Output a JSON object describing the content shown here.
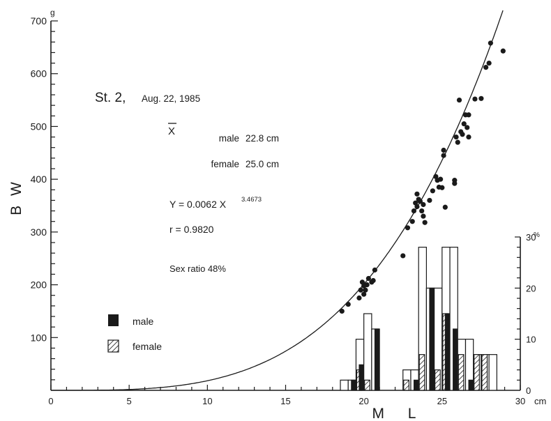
{
  "chart_data": {
    "type": "scatter",
    "title": "St. 2,",
    "date": "Aug. 22, 1985",
    "xlabel": "M L",
    "ylabel": "B W",
    "x_unit": "cm",
    "y_unit": "g",
    "pct_unit": "%",
    "xlim": [
      0,
      30
    ],
    "ylim": [
      0,
      700
    ],
    "pct_lim": [
      0,
      30
    ],
    "x_ticks": [
      "0",
      "5",
      "10",
      "15",
      "20",
      "25",
      "30"
    ],
    "y_ticks": [
      "100",
      "200",
      "300",
      "400",
      "500",
      "600",
      "700"
    ],
    "pct_ticks": [
      "0",
      "10",
      "20",
      "30"
    ],
    "annotations": {
      "xbar": "X",
      "male_label": "male",
      "male_mean": "22.8 cm",
      "female_label": "female",
      "female_mean": "25.0 cm",
      "eq_prefix": "Y = 0.0062 X",
      "eq_exp": "3.4673",
      "r": "r = 0.9820",
      "sex_ratio": "Sex ratio 48%"
    },
    "legend": [
      {
        "name": "male",
        "fill": "solid"
      },
      {
        "name": "female",
        "fill": "hatched"
      }
    ],
    "curve": {
      "a": 0.0062,
      "b": 3.4673
    },
    "scatter": [
      [
        18.6,
        150
      ],
      [
        19.0,
        163
      ],
      [
        19.7,
        175
      ],
      [
        19.8,
        190
      ],
      [
        19.9,
        205
      ],
      [
        20.0,
        182
      ],
      [
        20.0,
        198
      ],
      [
        20.1,
        190
      ],
      [
        20.2,
        200
      ],
      [
        20.3,
        212
      ],
      [
        20.5,
        205
      ],
      [
        20.6,
        208
      ],
      [
        20.7,
        228
      ],
      [
        22.5,
        255
      ],
      [
        22.8,
        308
      ],
      [
        23.1,
        320
      ],
      [
        23.2,
        340
      ],
      [
        23.3,
        355
      ],
      [
        23.4,
        372
      ],
      [
        23.4,
        348
      ],
      [
        23.5,
        362
      ],
      [
        23.6,
        358
      ],
      [
        23.7,
        340
      ],
      [
        23.8,
        352
      ],
      [
        23.8,
        330
      ],
      [
        23.9,
        318
      ],
      [
        24.2,
        360
      ],
      [
        24.4,
        378
      ],
      [
        24.6,
        405
      ],
      [
        24.7,
        398
      ],
      [
        24.8,
        385
      ],
      [
        24.9,
        400
      ],
      [
        25.0,
        384
      ],
      [
        25.1,
        445
      ],
      [
        25.1,
        455
      ],
      [
        25.2,
        347
      ],
      [
        25.8,
        398
      ],
      [
        25.8,
        392
      ],
      [
        25.9,
        480
      ],
      [
        26.0,
        470
      ],
      [
        26.1,
        550
      ],
      [
        26.2,
        490
      ],
      [
        26.3,
        485
      ],
      [
        26.4,
        505
      ],
      [
        26.5,
        522
      ],
      [
        26.6,
        498
      ],
      [
        26.7,
        480
      ],
      [
        26.7,
        522
      ],
      [
        27.1,
        552
      ],
      [
        27.5,
        553
      ],
      [
        27.8,
        612
      ],
      [
        28.0,
        620
      ],
      [
        28.1,
        658
      ],
      [
        28.9,
        643
      ]
    ],
    "histogram": {
      "bin_width": 0.5,
      "bins": [
        {
          "x": 18.5,
          "male": 0,
          "female": 0,
          "total": 2
        },
        {
          "x": 19.0,
          "male": 2,
          "female": 0,
          "total": 2
        },
        {
          "x": 19.5,
          "male": 5,
          "female": 4,
          "total": 10
        },
        {
          "x": 20.0,
          "male": 0,
          "female": 2,
          "total": 15
        },
        {
          "x": 20.5,
          "male": 12,
          "female": 0,
          "total": 12
        },
        {
          "x": 22.5,
          "male": 0,
          "female": 2,
          "total": 4
        },
        {
          "x": 23.0,
          "male": 2,
          "female": 0,
          "total": 4
        },
        {
          "x": 23.5,
          "male": 0,
          "female": 7,
          "total": 28
        },
        {
          "x": 24.0,
          "male": 20,
          "female": 0,
          "total": 20
        },
        {
          "x": 24.5,
          "male": 0,
          "female": 4,
          "total": 20
        },
        {
          "x": 25.0,
          "male": 15,
          "female": 15,
          "total": 28
        },
        {
          "x": 25.5,
          "male": 12,
          "female": 0,
          "total": 28
        },
        {
          "x": 26.0,
          "male": 0,
          "female": 7,
          "total": 10
        },
        {
          "x": 26.5,
          "male": 2,
          "female": 0,
          "total": 10
        },
        {
          "x": 27.0,
          "male": 0,
          "female": 7,
          "total": 7
        },
        {
          "x": 27.5,
          "male": 0,
          "female": 7,
          "total": 7
        },
        {
          "x": 28.0,
          "male": 0,
          "female": 0,
          "total": 7
        }
      ]
    }
  }
}
